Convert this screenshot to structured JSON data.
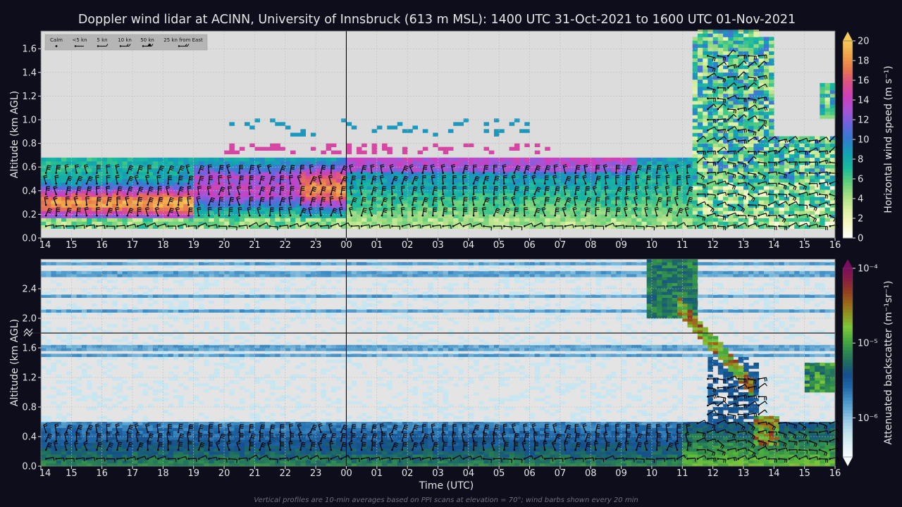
{
  "title": "Doppler wind lidar at ACINN, University of Innsbruck (613 m MSL): 1400 UTC 31-Oct-2021 to 1600 UTC 01-Nov-2021",
  "footnote": "Vertical profiles are 10-min averages based on PPI scans at elevation = 70°; wind barbs shown every 20 min",
  "colors": {
    "background": "#0d0d1c",
    "plot_bg_top": "#dcdcdc",
    "plot_bg_bottom": "#e4e4e4",
    "midnight_line": "#000000"
  },
  "chart_data": [
    {
      "type": "heatmap",
      "name": "horizontal-wind-speed",
      "xlabel": "",
      "ylabel": "Altitude (km AGL)",
      "x_ticks": [
        "14",
        "15",
        "16",
        "17",
        "18",
        "19",
        "20",
        "21",
        "22",
        "23",
        "00",
        "01",
        "02",
        "03",
        "04",
        "05",
        "06",
        "07",
        "08",
        "09",
        "10",
        "11",
        "12",
        "13",
        "14",
        "15",
        "16"
      ],
      "xlim_hours_utc": [
        14,
        40
      ],
      "ylim": [
        0.0,
        1.75
      ],
      "y_ticks": [
        "0.0",
        "0.2",
        "0.4",
        "0.6",
        "0.8",
        "1.0",
        "1.2",
        "1.4",
        "1.6"
      ],
      "grid": true,
      "colorbar": {
        "label": "Horizontal wind speed (m s⁻¹)",
        "unit": "m s-1",
        "range": [
          0,
          20
        ],
        "ticks": [
          "0",
          "2",
          "4",
          "6",
          "8",
          "10",
          "12",
          "14",
          "16",
          "18",
          "20"
        ],
        "colors": [
          "#ffffff",
          "#f7f7c6",
          "#d9f0a3",
          "#a8df84",
          "#5fcf7c",
          "#1aba9c",
          "#13a2b3",
          "#2f7fcf",
          "#6666dd",
          "#a455d8",
          "#cc3fbf",
          "#dd4f87",
          "#e8774d",
          "#f0a549",
          "#f5c85a"
        ]
      },
      "legend": {
        "position": "top-left",
        "entries": [
          "Calm",
          "<5 kn",
          "5 kn",
          "10 kn",
          "50 kn",
          "25 kn from East"
        ]
      },
      "features": {
        "main_layer_top_km": 0.68,
        "jet_core_km": 0.28,
        "jet_speed_ms": 18,
        "deep_mixing_after_utc": "11:30",
        "upper_patch_km": [
          1.0,
          1.75
        ]
      }
    },
    {
      "type": "heatmap",
      "name": "attenuated-backscatter",
      "xlabel": "Time (UTC)",
      "ylabel": "Altitude (km AGL)",
      "x_ticks": [
        "14",
        "15",
        "16",
        "17",
        "18",
        "19",
        "20",
        "21",
        "22",
        "23",
        "00",
        "01",
        "02",
        "03",
        "04",
        "05",
        "06",
        "07",
        "08",
        "09",
        "10",
        "11",
        "12",
        "13",
        "14",
        "15",
        "16"
      ],
      "xlim_hours_utc": [
        14,
        40
      ],
      "ylim": [
        0.0,
        2.8
      ],
      "y_ticks": [
        "0.0",
        "0.4",
        "0.8",
        "1.2",
        "1.6",
        "2.0",
        "2.4"
      ],
      "axis_break_km": 1.8,
      "grid": true,
      "colorbar": {
        "label": "Attenuated backscatter (m⁻¹sr⁻¹)",
        "scale": "log",
        "range": [
          3e-07,
          0.0001
        ],
        "ticks": [
          "10⁻⁶",
          "10⁻⁵",
          "10⁻⁴"
        ],
        "colors": [
          "#f7fcfd",
          "#e0f2f7",
          "#c4e4ef",
          "#9fcde4",
          "#6aaed6",
          "#3f8dc4",
          "#1f66a6",
          "#14508c",
          "#1e6b62",
          "#2f8b4f",
          "#4cac3e",
          "#7cc83a",
          "#8e9a24",
          "#9a6a18",
          "#93401f",
          "#8a1f3f",
          "#7c0d5e"
        ]
      },
      "features": {
        "aerosol_layer_top_km": 0.62,
        "elevated_layers_km": [
          1.5,
          1.6,
          2.1,
          2.3,
          2.6,
          2.75
        ],
        "cloud_plume_utc": [
          "10:00",
          "14:00"
        ]
      }
    }
  ]
}
